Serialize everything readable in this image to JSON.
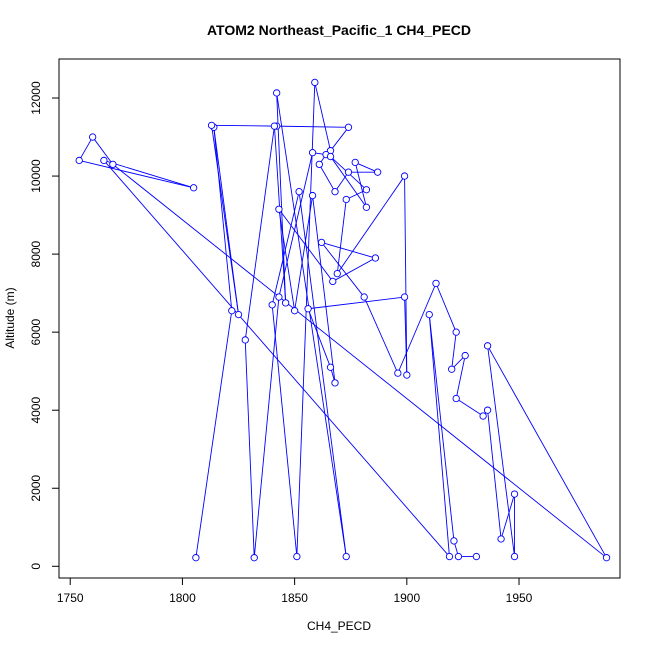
{
  "chart_data": {
    "type": "line",
    "title": "ATOM2 Northeast_Pacific_1 CH4_PECD",
    "xlabel": "CH4_PECD",
    "ylabel": "Altitude (m)",
    "xlim": [
      1745,
      1995
    ],
    "ylim": [
      -300,
      13000
    ],
    "x_ticks": [
      1750,
      1800,
      1850,
      1900,
      1950
    ],
    "y_ticks": [
      0,
      2000,
      4000,
      6000,
      8000,
      10000,
      12000
    ],
    "x_tick_labels": [
      "1750",
      "1800",
      "1850",
      "1900",
      "1950"
    ],
    "y_tick_labels": [
      "0",
      "2000",
      "4000",
      "6000",
      "8000",
      "10000",
      "12000"
    ],
    "series_color": "#0000ff",
    "points": [
      {
        "x": 1806,
        "y": 220
      },
      {
        "x": 1822,
        "y": 6550
      },
      {
        "x": 1814,
        "y": 11250
      },
      {
        "x": 1825,
        "y": 6450
      },
      {
        "x": 1813,
        "y": 11300
      },
      {
        "x": 1842,
        "y": 11280
      },
      {
        "x": 1874,
        "y": 11250
      },
      {
        "x": 1866,
        "y": 10650
      },
      {
        "x": 1859,
        "y": 12400
      },
      {
        "x": 1851,
        "y": 250
      },
      {
        "x": 1840,
        "y": 6700
      },
      {
        "x": 1852,
        "y": 9600
      },
      {
        "x": 1873,
        "y": 250
      },
      {
        "x": 1842,
        "y": 12130
      },
      {
        "x": 1846,
        "y": 6750
      },
      {
        "x": 1841,
        "y": 11280
      },
      {
        "x": 1828,
        "y": 5800
      },
      {
        "x": 1832,
        "y": 220
      },
      {
        "x": 1843,
        "y": 6900
      },
      {
        "x": 1858,
        "y": 10600
      },
      {
        "x": 1864,
        "y": 10550
      },
      {
        "x": 1861,
        "y": 10300
      },
      {
        "x": 1868,
        "y": 9600
      },
      {
        "x": 1874,
        "y": 10100
      },
      {
        "x": 1887,
        "y": 10100
      },
      {
        "x": 1877,
        "y": 10350
      },
      {
        "x": 1882,
        "y": 9200
      },
      {
        "x": 1866,
        "y": 10500
      },
      {
        "x": 1882,
        "y": 9650
      },
      {
        "x": 1873,
        "y": 9400
      },
      {
        "x": 1869,
        "y": 7500
      },
      {
        "x": 1899,
        "y": 10000
      },
      {
        "x": 1900,
        "y": 4900
      },
      {
        "x": 1899,
        "y": 6900
      },
      {
        "x": 1856,
        "y": 6600
      },
      {
        "x": 1866,
        "y": 5100
      },
      {
        "x": 1868,
        "y": 4700
      },
      {
        "x": 1858,
        "y": 9500
      },
      {
        "x": 1850,
        "y": 6550
      },
      {
        "x": 1843,
        "y": 9150
      },
      {
        "x": 1867,
        "y": 7300
      },
      {
        "x": 1886,
        "y": 7900
      },
      {
        "x": 1862,
        "y": 8300
      },
      {
        "x": 1881,
        "y": 6900
      },
      {
        "x": 1896,
        "y": 4950
      },
      {
        "x": 1913,
        "y": 7250
      },
      {
        "x": 1922,
        "y": 6000
      },
      {
        "x": 1920,
        "y": 5050
      },
      {
        "x": 1926,
        "y": 5400
      },
      {
        "x": 1922,
        "y": 4300
      },
      {
        "x": 1934,
        "y": 3850
      },
      {
        "x": 1936,
        "y": 4000
      },
      {
        "x": 1942,
        "y": 700
      },
      {
        "x": 1948,
        "y": 1850
      },
      {
        "x": 1948,
        "y": 250
      },
      {
        "x": 1936,
        "y": 5650
      },
      {
        "x": 1989,
        "y": 220
      },
      {
        "x": 1769,
        "y": 10300
      },
      {
        "x": 1760,
        "y": 11000
      },
      {
        "x": 1754,
        "y": 10400
      },
      {
        "x": 1805,
        "y": 9700
      },
      {
        "x": 1765,
        "y": 10400
      },
      {
        "x": 1919,
        "y": 250
      },
      {
        "x": 1910,
        "y": 6450
      },
      {
        "x": 1921,
        "y": 650
      },
      {
        "x": 1923,
        "y": 250
      },
      {
        "x": 1931,
        "y": 250
      }
    ]
  }
}
